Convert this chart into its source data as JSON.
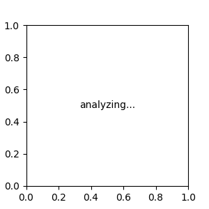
{
  "bg_color": "#ececec",
  "line_color": "#000000",
  "N_color": "#0000ff",
  "O_color": "#ff0000",
  "S_color": "#cccc00",
  "figsize": [
    3.0,
    3.0
  ],
  "dpi": 100,
  "lw": 1.4
}
